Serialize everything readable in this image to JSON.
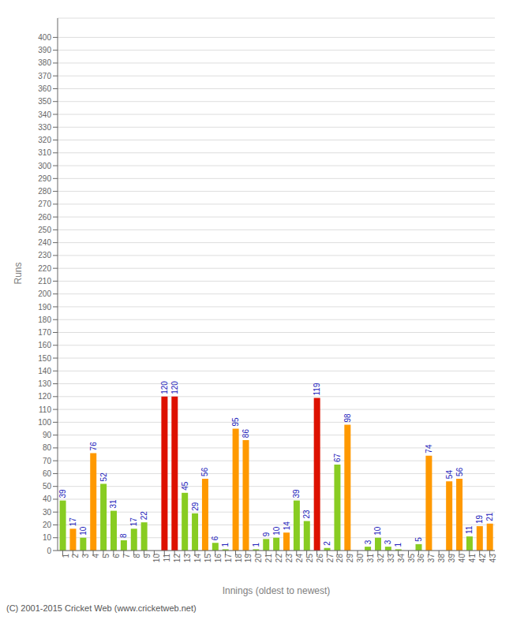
{
  "chart_data": {
    "type": "bar",
    "categories": [
      1,
      2,
      3,
      4,
      5,
      6,
      7,
      8,
      9,
      10,
      11,
      12,
      13,
      14,
      15,
      16,
      17,
      18,
      19,
      20,
      21,
      22,
      23,
      24,
      25,
      26,
      27,
      28,
      29,
      30,
      31,
      32,
      33,
      34,
      35,
      36,
      37,
      38,
      39,
      40,
      41,
      42,
      43
    ],
    "values": [
      39,
      17,
      10,
      76,
      52,
      31,
      8,
      17,
      22,
      0,
      120,
      120,
      45,
      29,
      56,
      6,
      1,
      95,
      86,
      1,
      9,
      10,
      14,
      39,
      23,
      119,
      2,
      67,
      98,
      0,
      3,
      10,
      3,
      1,
      0,
      5,
      74,
      0,
      54,
      56,
      11,
      19,
      21
    ],
    "colors": [
      "#88cc22",
      "#ff9900",
      "#88cc22",
      "#ff9900",
      "#88cc22",
      "#88cc22",
      "#88cc22",
      "#88cc22",
      "#88cc22",
      "#88cc22",
      "#dd1100",
      "#dd1100",
      "#88cc22",
      "#88cc22",
      "#ff9900",
      "#88cc22",
      "#88cc22",
      "#ff9900",
      "#ff9900",
      "#88cc22",
      "#88cc22",
      "#88cc22",
      "#ff9900",
      "#88cc22",
      "#88cc22",
      "#dd1100",
      "#88cc22",
      "#88cc22",
      "#ff9900",
      "#88cc22",
      "#88cc22",
      "#88cc22",
      "#88cc22",
      "#88cc22",
      "#88cc22",
      "#88cc22",
      "#ff9900",
      "#88cc22",
      "#ff9900",
      "#ff9900",
      "#88cc22",
      "#ff9900",
      "#ff9900"
    ],
    "xlabel": "Innings (oldest to newest)",
    "ylabel": "Runs",
    "ylim": [
      0,
      415
    ],
    "yticks": [
      0,
      10,
      20,
      30,
      40,
      50,
      60,
      70,
      80,
      90,
      100,
      110,
      120,
      130,
      140,
      150,
      160,
      170,
      180,
      190,
      200,
      210,
      220,
      230,
      240,
      250,
      260,
      270,
      280,
      290,
      300,
      310,
      320,
      330,
      340,
      350,
      360,
      370,
      380,
      390,
      400
    ],
    "grid": true,
    "data_labels": true,
    "annotations": [
      "(C) 2001-2015 Cricket Web (www.cricketweb.net)"
    ]
  }
}
